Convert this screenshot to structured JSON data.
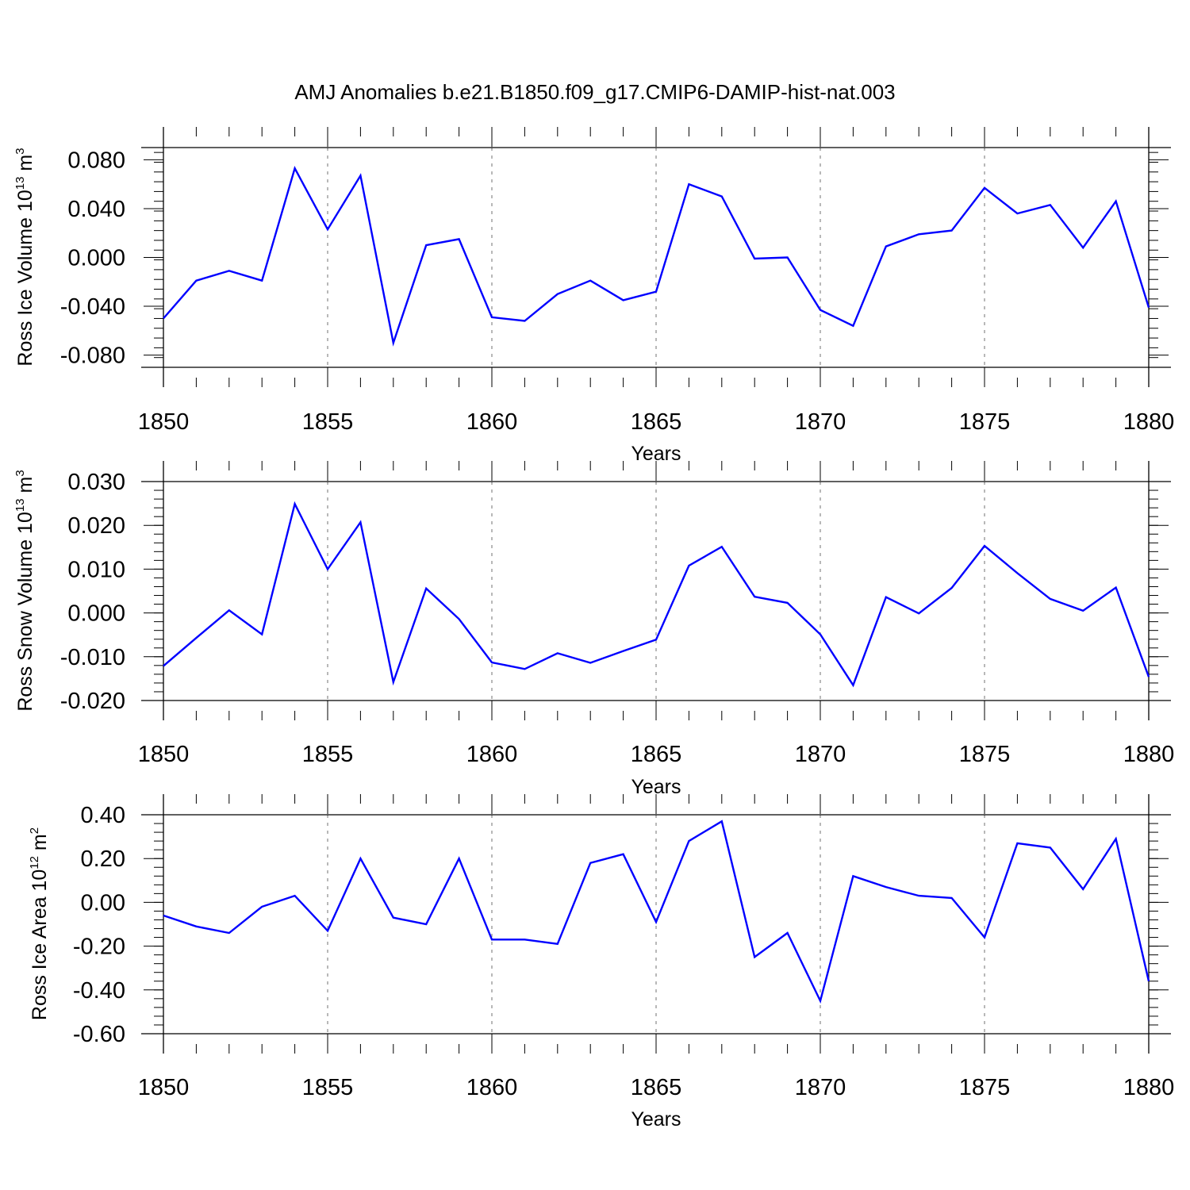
{
  "title": "AMJ Anomalies b.e21.B1850.f09_g17.CMIP6-DAMIP-hist-nat.003",
  "line_color": "#0000ff",
  "chart_data": [
    {
      "type": "line",
      "ylabel": {
        "text": "Ross Ice Volume 10",
        "exp": "13",
        "unit": " m",
        "unit_exp": "3"
      },
      "xlabel": "Years",
      "xlim": [
        1850,
        1880
      ],
      "ylim": [
        -0.09,
        0.09
      ],
      "yticks": [
        0.08,
        0.04,
        0.0,
        -0.04,
        -0.08
      ],
      "ytick_labels": [
        "0.080",
        "0.040",
        "0.000",
        "-0.040",
        "-0.080"
      ],
      "xticks": [
        1850,
        1855,
        1860,
        1865,
        1870,
        1875,
        1880
      ],
      "xtick_labels": [
        "1850",
        "1855",
        "1860",
        "1865",
        "1870",
        "1875",
        "1880"
      ],
      "x": [
        1850,
        1851,
        1852,
        1853,
        1854,
        1855,
        1856,
        1857,
        1858,
        1859,
        1860,
        1861,
        1862,
        1863,
        1864,
        1865,
        1866,
        1867,
        1868,
        1869,
        1870,
        1871,
        1872,
        1873,
        1874,
        1875,
        1876,
        1877,
        1878,
        1879,
        1880
      ],
      "y": [
        -0.05,
        -0.019,
        -0.011,
        -0.019,
        0.073,
        0.023,
        0.067,
        -0.07,
        0.01,
        0.015,
        -0.049,
        -0.052,
        -0.03,
        -0.019,
        -0.035,
        -0.028,
        0.06,
        0.05,
        -0.001,
        0.0,
        -0.043,
        -0.056,
        0.009,
        0.019,
        0.022,
        0.057,
        0.036,
        0.043,
        0.008,
        0.046,
        -0.041
      ]
    },
    {
      "type": "line",
      "ylabel": {
        "text": "Ross Snow Volume 10",
        "exp": "13",
        "unit": " m",
        "unit_exp": "3"
      },
      "xlabel": "Years",
      "xlim": [
        1850,
        1880
      ],
      "ylim": [
        -0.02,
        0.03
      ],
      "yticks": [
        0.03,
        0.02,
        0.01,
        0.0,
        -0.01,
        -0.02
      ],
      "ytick_labels": [
        "0.030",
        "0.020",
        "0.010",
        "0.000",
        "-0.010",
        "-0.020"
      ],
      "xticks": [
        1850,
        1855,
        1860,
        1865,
        1870,
        1875,
        1880
      ],
      "xtick_labels": [
        "1850",
        "1855",
        "1860",
        "1865",
        "1870",
        "1875",
        "1880"
      ],
      "x": [
        1850,
        1851,
        1852,
        1853,
        1854,
        1855,
        1856,
        1857,
        1858,
        1859,
        1860,
        1861,
        1862,
        1863,
        1864,
        1865,
        1866,
        1867,
        1868,
        1869,
        1870,
        1871,
        1872,
        1873,
        1874,
        1875,
        1876,
        1877,
        1878,
        1879,
        1880
      ],
      "y": [
        -0.0121,
        -0.0057,
        0.0006,
        -0.0049,
        0.0249,
        0.01,
        0.0207,
        -0.0158,
        0.0056,
        -0.0014,
        -0.0113,
        -0.0128,
        -0.0092,
        -0.0114,
        -0.0087,
        -0.0061,
        0.0108,
        0.0151,
        0.0037,
        0.0023,
        -0.0049,
        -0.0165,
        0.0036,
        -0.0001,
        0.0057,
        0.0153,
        0.0091,
        0.0032,
        0.0005,
        0.0058,
        -0.0146
      ]
    },
    {
      "type": "line",
      "ylabel": {
        "text": "Ross Ice Area 10",
        "exp": "12",
        "unit": " m",
        "unit_exp": "2"
      },
      "xlabel": "Years",
      "xlim": [
        1850,
        1880
      ],
      "ylim": [
        -0.6,
        0.4
      ],
      "yticks": [
        0.4,
        0.2,
        0.0,
        -0.2,
        -0.4,
        -0.6
      ],
      "ytick_labels": [
        "0.40",
        "0.20",
        "0.00",
        "-0.20",
        "-0.40",
        "-0.60"
      ],
      "xticks": [
        1850,
        1855,
        1860,
        1865,
        1870,
        1875,
        1880
      ],
      "xtick_labels": [
        "1850",
        "1855",
        "1860",
        "1865",
        "1870",
        "1875",
        "1880"
      ],
      "x": [
        1850,
        1851,
        1852,
        1853,
        1854,
        1855,
        1856,
        1857,
        1858,
        1859,
        1860,
        1861,
        1862,
        1863,
        1864,
        1865,
        1866,
        1867,
        1868,
        1869,
        1870,
        1871,
        1872,
        1873,
        1874,
        1875,
        1876,
        1877,
        1878,
        1879,
        1880
      ],
      "y": [
        -0.06,
        -0.11,
        -0.14,
        -0.02,
        0.03,
        -0.13,
        0.2,
        -0.07,
        -0.1,
        0.2,
        -0.17,
        -0.17,
        -0.19,
        0.18,
        0.22,
        -0.09,
        0.28,
        0.37,
        -0.25,
        -0.14,
        -0.45,
        0.12,
        0.07,
        0.03,
        0.02,
        -0.16,
        0.27,
        0.25,
        0.06,
        0.29,
        -0.36
      ]
    }
  ]
}
